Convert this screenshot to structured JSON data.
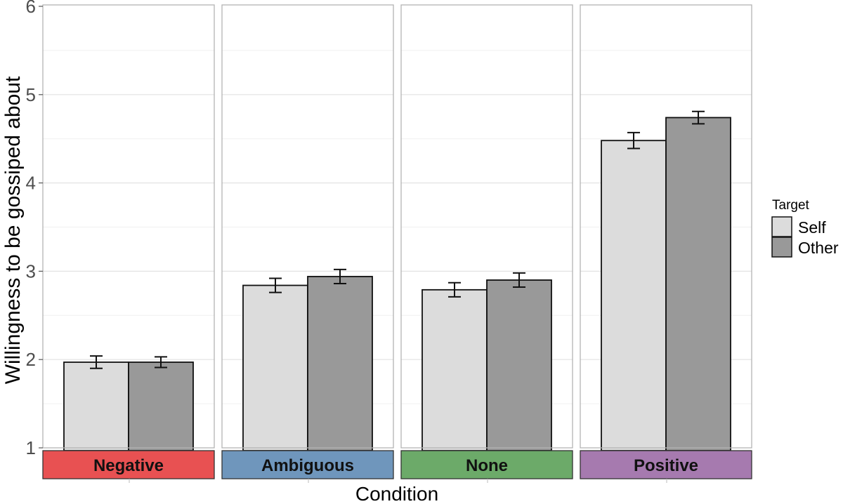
{
  "chart_data": {
    "type": "bar",
    "title": "",
    "xlabel": "Condition",
    "ylabel": "Willingness to be gossiped about",
    "ylim": [
      1,
      6
    ],
    "y_ticks": [
      "1",
      "2",
      "3",
      "4",
      "5",
      "6"
    ],
    "grid": true,
    "facet_by": "Condition",
    "categories": [
      "Negative",
      "Ambiguous",
      "None",
      "Positive"
    ],
    "facet_colors": [
      "#e85152",
      "#6f96bc",
      "#6caa69",
      "#a67aaf"
    ],
    "legend": {
      "title": "Target",
      "position": "right"
    },
    "series": [
      {
        "name": "Self",
        "color": "#dcdcdc",
        "values": [
          1.97,
          2.84,
          2.79,
          4.48
        ],
        "errors": [
          0.07,
          0.08,
          0.08,
          0.09
        ]
      },
      {
        "name": "Other",
        "color": "#999999",
        "values": [
          1.97,
          2.94,
          2.9,
          4.74
        ],
        "errors": [
          0.06,
          0.08,
          0.08,
          0.07
        ]
      }
    ]
  }
}
